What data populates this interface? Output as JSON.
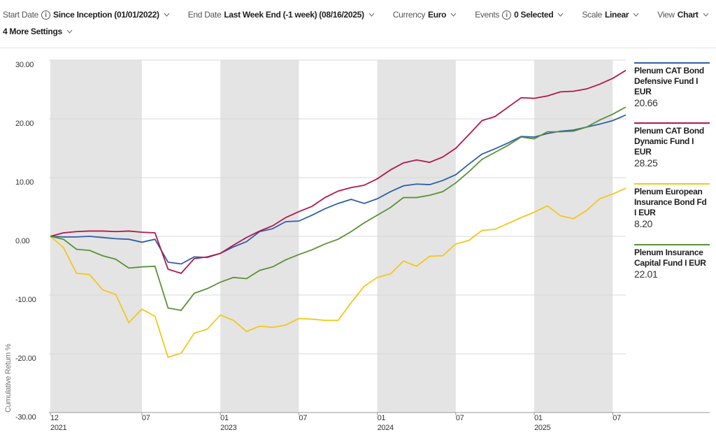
{
  "toolbar": {
    "settings": [
      {
        "label": "Start Date",
        "value": "Since Inception (01/01/2022)",
        "info": true
      },
      {
        "label": "End Date",
        "value": "Last Week End (-1 week) (08/16/2025)",
        "info": false
      },
      {
        "label": "Currency",
        "value": "Euro",
        "info": false
      },
      {
        "label": "Events",
        "value": "0 Selected",
        "info": true
      },
      {
        "label": "Scale",
        "value": "Linear",
        "info": false
      },
      {
        "label": "View",
        "value": "Chart",
        "info": false
      }
    ],
    "more": "4 More Settings"
  },
  "chart_data": {
    "type": "line",
    "y_label": "Cumulative Return %",
    "x": [
      "2021-12",
      "2022-01",
      "2022-02",
      "2022-03",
      "2022-04",
      "2022-05",
      "2022-06",
      "2022-07",
      "2022-08",
      "2022-09",
      "2022-10",
      "2022-11",
      "2022-12",
      "2023-01",
      "2023-02",
      "2023-03",
      "2023-04",
      "2023-05",
      "2023-06",
      "2023-07",
      "2023-08",
      "2023-09",
      "2023-10",
      "2023-11",
      "2023-12",
      "2024-01",
      "2024-02",
      "2024-03",
      "2024-04",
      "2024-05",
      "2024-06",
      "2024-07",
      "2024-08",
      "2024-09",
      "2024-10",
      "2024-11",
      "2024-12",
      "2025-01",
      "2025-02",
      "2025-03",
      "2025-04",
      "2025-05",
      "2025-06",
      "2025-07",
      "2025-08"
    ],
    "xlim": [
      "2021-12",
      "2025-08"
    ],
    "xticks": [
      {
        "value": "2021-12",
        "label": "12"
      },
      {
        "value": "2022-07",
        "label": "07"
      },
      {
        "value": "2023-01",
        "label": "01"
      },
      {
        "value": "2023-07",
        "label": "07"
      },
      {
        "value": "2024-01",
        "label": "01"
      },
      {
        "value": "2024-07",
        "label": "07"
      },
      {
        "value": "2025-01",
        "label": "01"
      },
      {
        "value": "2025-07",
        "label": "07"
      }
    ],
    "xticks_years": [
      {
        "value": "2021-12",
        "label": "2021"
      },
      {
        "value": "2023-01",
        "label": "2023"
      },
      {
        "value": "2024-01",
        "label": "2024"
      },
      {
        "value": "2025-01",
        "label": "2025"
      }
    ],
    "ylim": [
      -30,
      30
    ],
    "yticks": [
      {
        "value": 30,
        "label": "30.00"
      },
      {
        "value": 20,
        "label": "20.00"
      },
      {
        "value": 10,
        "label": "10.00"
      },
      {
        "value": 0,
        "label": "0.00"
      },
      {
        "value": -10,
        "label": "-10.00"
      },
      {
        "value": -20,
        "label": "-20.00"
      },
      {
        "value": -30,
        "label": "-30.00"
      }
    ],
    "grid": true,
    "shaded_periods": true,
    "series": [
      {
        "name": "Plenum CAT Bond Defensive Fund I EUR",
        "color": "#2f5fa7",
        "values": [
          0,
          -0.1,
          -0.1,
          0,
          -0.2,
          -0.4,
          -0.5,
          -1.0,
          -0.5,
          -4.4,
          -4.7,
          -3.5,
          -3.6,
          -2.9,
          -1.8,
          -0.9,
          0.8,
          1.3,
          2.5,
          2.6,
          3.6,
          4.7,
          5.6,
          6.3,
          5.6,
          6.4,
          7.6,
          8.6,
          8.9,
          8.8,
          9.5,
          10.5,
          12.3,
          14.0,
          14.9,
          15.9,
          17.0,
          16.9,
          17.5,
          17.9,
          18.1,
          18.6,
          19.1,
          19.7,
          20.66
        ],
        "value_labels": [
          null,
          null,
          null,
          null,
          null,
          null,
          null,
          null,
          null,
          null,
          null,
          null,
          null,
          null,
          null,
          null,
          null,
          null,
          null,
          null,
          null,
          null,
          null,
          null,
          null,
          null,
          null,
          null,
          null,
          null,
          null,
          null,
          null,
          null,
          null,
          null,
          null,
          null,
          null,
          null,
          null,
          null,
          null,
          null,
          "20.66"
        ]
      },
      {
        "name": "Plenum CAT Bond Dynamic Fund I EUR",
        "color": "#b3184b",
        "values": [
          0,
          0.6,
          0.8,
          0.9,
          0.9,
          0.8,
          0.9,
          0.7,
          0.6,
          -5.6,
          -6.3,
          -3.8,
          -3.5,
          -2.9,
          -1.5,
          -0.2,
          0.9,
          1.8,
          3.2,
          4.2,
          5.1,
          6.6,
          7.7,
          8.3,
          8.7,
          9.8,
          11.3,
          12.5,
          13.0,
          12.6,
          13.5,
          15.0,
          17.3,
          19.7,
          20.4,
          22.0,
          23.6,
          23.5,
          23.9,
          24.6,
          24.7,
          25.1,
          25.9,
          26.9,
          28.25
        ],
        "value_labels": [
          null,
          null,
          null,
          null,
          null,
          null,
          null,
          null,
          null,
          null,
          null,
          null,
          null,
          null,
          null,
          null,
          null,
          null,
          null,
          null,
          null,
          null,
          null,
          null,
          null,
          null,
          null,
          null,
          null,
          null,
          null,
          null,
          null,
          null,
          null,
          null,
          null,
          null,
          null,
          null,
          null,
          null,
          null,
          null,
          "28.25"
        ]
      },
      {
        "name": "Plenum European Insurance Bond Fd I EUR",
        "color": "#f2c81b",
        "values": [
          0,
          -1.9,
          -6.3,
          -6.5,
          -9.1,
          -9.9,
          -14.7,
          -12.4,
          -13.6,
          -20.6,
          -19.9,
          -16.5,
          -15.8,
          -13.4,
          -14.3,
          -16.2,
          -15.3,
          -15.5,
          -15.1,
          -14.0,
          -14.1,
          -14.3,
          -14.3,
          -11.3,
          -8.5,
          -7.0,
          -6.4,
          -4.2,
          -5.1,
          -3.4,
          -3.3,
          -1.3,
          -0.7,
          1.0,
          1.2,
          2.2,
          3.2,
          4.1,
          5.2,
          3.5,
          3.0,
          4.4,
          6.4,
          7.2,
          8.2
        ],
        "value_labels": [
          null,
          null,
          null,
          null,
          null,
          null,
          null,
          null,
          null,
          null,
          null,
          null,
          null,
          null,
          null,
          null,
          null,
          null,
          null,
          null,
          null,
          null,
          null,
          null,
          null,
          null,
          null,
          null,
          null,
          null,
          null,
          null,
          null,
          null,
          null,
          null,
          null,
          null,
          null,
          null,
          null,
          null,
          null,
          null,
          "8.20"
        ]
      },
      {
        "name": "Plenum Insurance Capital Fund I EUR",
        "color": "#5a9237",
        "values": [
          0,
          -0.5,
          -2.2,
          -2.4,
          -3.3,
          -3.9,
          -5.4,
          -5.2,
          -5.1,
          -12.2,
          -12.6,
          -9.7,
          -8.9,
          -7.8,
          -7.0,
          -7.2,
          -5.8,
          -5.2,
          -4.0,
          -3.1,
          -2.3,
          -1.3,
          -0.5,
          0.8,
          2.3,
          3.6,
          4.9,
          6.6,
          6.6,
          7.0,
          7.6,
          9.1,
          11.0,
          13.1,
          14.3,
          15.5,
          16.9,
          16.6,
          17.8,
          17.8,
          17.9,
          18.6,
          19.8,
          20.8,
          22.01
        ],
        "value_labels": [
          null,
          null,
          null,
          null,
          null,
          null,
          null,
          null,
          null,
          null,
          null,
          null,
          null,
          null,
          null,
          null,
          null,
          null,
          null,
          null,
          null,
          null,
          null,
          null,
          null,
          null,
          null,
          null,
          null,
          null,
          null,
          null,
          null,
          null,
          null,
          null,
          null,
          null,
          null,
          null,
          null,
          null,
          null,
          null,
          "22.01"
        ]
      }
    ]
  }
}
